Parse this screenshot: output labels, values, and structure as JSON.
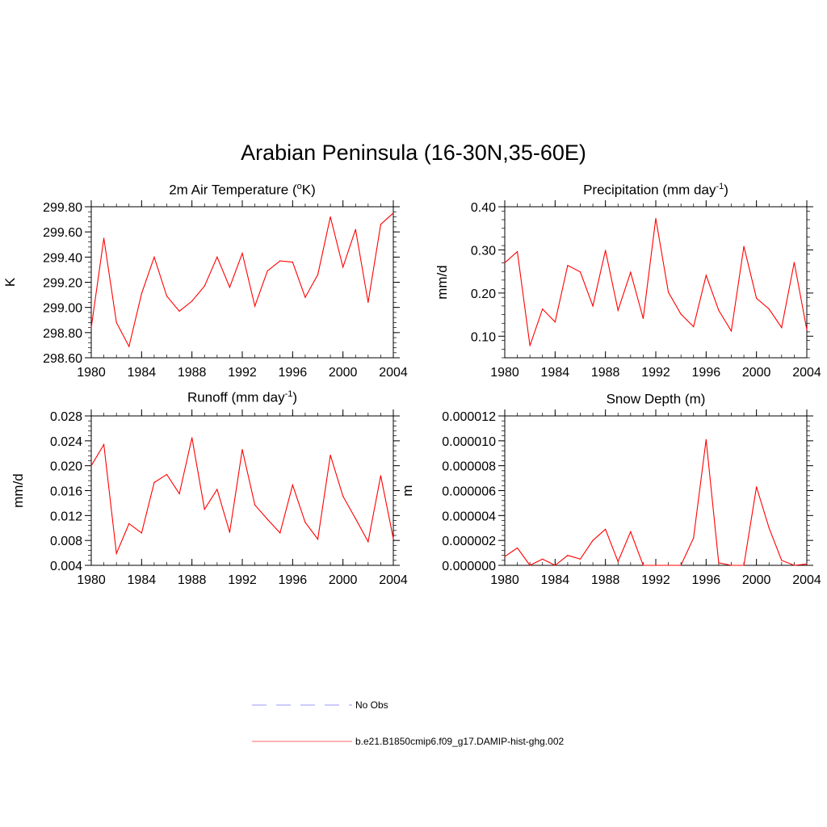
{
  "figure": {
    "title": "Arabian Peninsula (16-30N,35-60E)"
  },
  "legend": {
    "position": "bottom-center",
    "entries": [
      {
        "label": "No Obs",
        "color": "#9999ff",
        "style": "dashed"
      },
      {
        "label": "b.e21.B1850cmip6.f09_g17.DAMIP-hist-ghg.002",
        "color": "#ff6666",
        "style": "solid"
      }
    ]
  },
  "chart_data": [
    {
      "type": "line",
      "title_prefix": "2m Air Temperature (",
      "title_sup": "o",
      "title_suffix": "K)",
      "ylabel": "K",
      "xlim": [
        1980,
        2004
      ],
      "ylim": [
        298.6,
        299.8
      ],
      "xticks": [
        "1980",
        "1984",
        "1988",
        "1992",
        "1996",
        "2000",
        "2004"
      ],
      "yticks": [
        "298.60",
        "298.80",
        "299.00",
        "299.20",
        "299.40",
        "299.60",
        "299.80"
      ],
      "grid": false,
      "line_color": "#ff0000",
      "x": [
        1980,
        1981,
        1982,
        1983,
        1984,
        1985,
        1986,
        1987,
        1988,
        1989,
        1990,
        1991,
        1992,
        1993,
        1994,
        1995,
        1996,
        1997,
        1998,
        1999,
        2000,
        2001,
        2002,
        2003,
        2004
      ],
      "series": [
        {
          "values": [
            298.84,
            299.55,
            298.88,
            298.69,
            299.11,
            299.4,
            299.09,
            298.97,
            299.05,
            299.17,
            299.4,
            299.16,
            299.43,
            299.01,
            299.29,
            299.37,
            299.36,
            299.08,
            299.26,
            299.72,
            299.32,
            299.62,
            299.04,
            299.66,
            299.75
          ]
        }
      ]
    },
    {
      "type": "line",
      "title_prefix": "Precipitation (mm day",
      "title_sup": "-1",
      "title_suffix": ")",
      "ylabel": "mm/d",
      "xlim": [
        1980,
        2004
      ],
      "ylim": [
        0.05,
        0.4
      ],
      "xticks": [
        "1980",
        "1984",
        "1988",
        "1992",
        "1996",
        "2000",
        "2004"
      ],
      "yticks": [
        "0.10",
        "0.20",
        "0.30",
        "0.40"
      ],
      "grid": false,
      "line_color": "#ff0000",
      "x": [
        1980,
        1981,
        1982,
        1983,
        1984,
        1985,
        1986,
        1987,
        1988,
        1989,
        1990,
        1991,
        1992,
        1993,
        1994,
        1995,
        1996,
        1997,
        1998,
        1999,
        2000,
        2001,
        2002,
        2003,
        2004
      ],
      "series": [
        {
          "values": [
            0.27,
            0.296,
            0.078,
            0.163,
            0.133,
            0.264,
            0.249,
            0.17,
            0.299,
            0.16,
            0.248,
            0.141,
            0.373,
            0.202,
            0.151,
            0.122,
            0.241,
            0.16,
            0.112,
            0.308,
            0.188,
            0.163,
            0.12,
            0.271,
            0.115
          ]
        }
      ]
    },
    {
      "type": "line",
      "title_prefix": "Runoff (mm day",
      "title_sup": "-1",
      "title_suffix": ")",
      "ylabel": "mm/d",
      "xlim": [
        1980,
        2004
      ],
      "ylim": [
        0.004,
        0.028
      ],
      "xticks": [
        "1980",
        "1984",
        "1988",
        "1992",
        "1996",
        "2000",
        "2004"
      ],
      "yticks": [
        "0.004",
        "0.008",
        "0.012",
        "0.016",
        "0.020",
        "0.024",
        "0.028"
      ],
      "grid": false,
      "line_color": "#ff0000",
      "x": [
        1980,
        1981,
        1982,
        1983,
        1984,
        1985,
        1986,
        1987,
        1988,
        1989,
        1990,
        1991,
        1992,
        1993,
        1994,
        1995,
        1996,
        1997,
        1998,
        1999,
        2000,
        2001,
        2002,
        2003,
        2004
      ],
      "series": [
        {
          "values": [
            0.02,
            0.0234,
            0.0059,
            0.0107,
            0.0092,
            0.0173,
            0.0186,
            0.0155,
            0.0245,
            0.013,
            0.0162,
            0.0093,
            0.0226,
            0.0137,
            0.0114,
            0.0092,
            0.0169,
            0.0109,
            0.0082,
            0.0217,
            0.0151,
            0.0115,
            0.0078,
            0.0184,
            0.0083
          ]
        }
      ]
    },
    {
      "type": "line",
      "title_prefix": "Snow Depth (m)",
      "title_sup": "",
      "title_suffix": "",
      "ylabel": "m",
      "xlim": [
        1980,
        2004
      ],
      "ylim": [
        0,
        1.2e-05
      ],
      "xticks": [
        "1980",
        "1984",
        "1988",
        "1992",
        "1996",
        "2000",
        "2004"
      ],
      "yticks": [
        "0.000000",
        "0.000002",
        "0.000004",
        "0.000006",
        "0.000008",
        "0.000010",
        "0.000012"
      ],
      "grid": false,
      "line_color": "#ff0000",
      "x": [
        1980,
        1981,
        1982,
        1983,
        1984,
        1985,
        1986,
        1987,
        1988,
        1989,
        1990,
        1991,
        1992,
        1993,
        1994,
        1995,
        1996,
        1997,
        1998,
        1999,
        2000,
        2001,
        2002,
        2003,
        2004
      ],
      "series": [
        {
          "values": [
            7e-07,
            1.4e-06,
            0.0,
            5e-07,
            0.0,
            8e-07,
            5e-07,
            2e-06,
            2.9e-06,
            3e-07,
            2.7e-06,
            0.0,
            0.0,
            0.0,
            0.0,
            2.2e-06,
            1.01e-05,
            2e-07,
            0.0,
            0.0,
            6.3e-06,
            3e-06,
            4e-07,
            0.0,
            1e-07
          ]
        }
      ]
    }
  ]
}
